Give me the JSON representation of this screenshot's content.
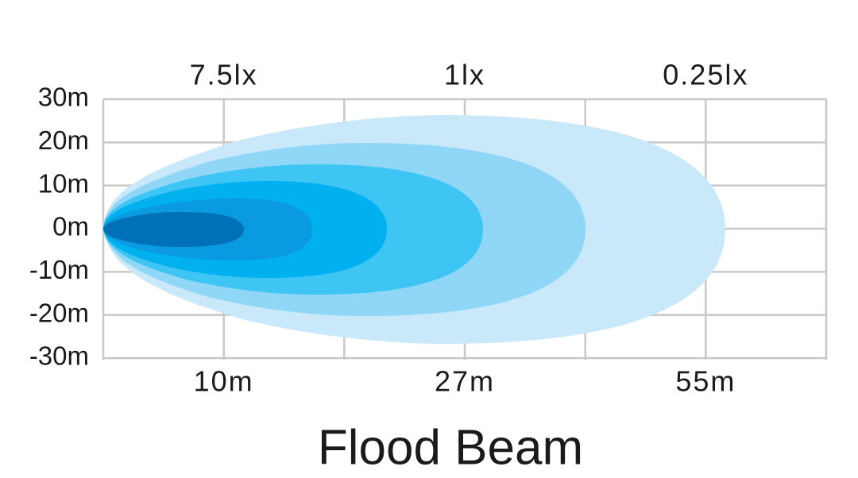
{
  "title": "Flood Beam",
  "y_axis": {
    "ticks": [
      "30m",
      "20m",
      "10m",
      "0m",
      "-10m",
      "-20m",
      "-30m"
    ]
  },
  "top_labels": [
    "7.5lx",
    "1lx",
    "0.25lx"
  ],
  "bottom_labels": [
    "10m",
    "27m",
    "55m"
  ]
}
